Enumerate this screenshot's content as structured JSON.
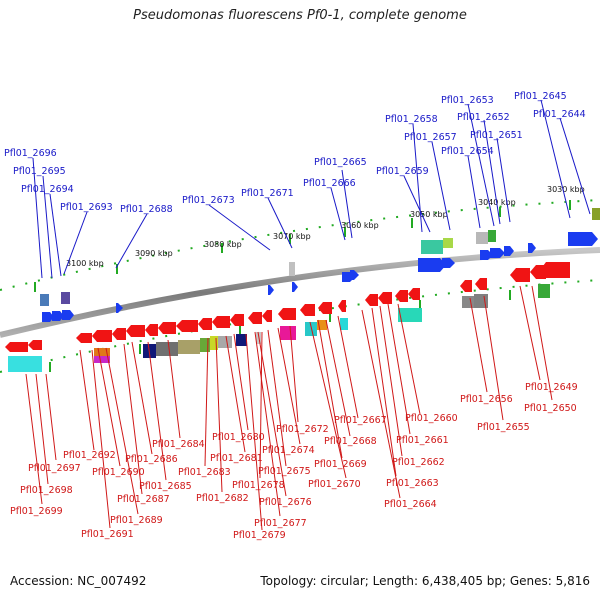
{
  "title": "Pseudomonas fluorescens Pf0-1, complete genome",
  "footer": {
    "accession": "Accession: NC_007492",
    "info": "Topology: circular; Length: 6,438,405 bp; Genes: 5,816"
  },
  "colors": {
    "forward_gene": "#1a3cf0",
    "reverse_gene": "#f01414",
    "top_label": "#1a1ac8",
    "bottom_label": "#d01818",
    "backbone": "#8a8a8a",
    "tick": "#22aa22"
  },
  "kbp_labels": [
    "3100 kbp",
    "3090 kbp",
    "3080 kbp",
    "3070 kbp",
    "3060 kbp",
    "3050 kbp",
    "3040 kbp",
    "3030 kbp"
  ],
  "top_labels": [
    "Pfl01_2696",
    "Pfl01_2695",
    "Pfl01_2694",
    "Pfl01_2693",
    "Pfl01_2688",
    "Pfl01_2673",
    "Pfl01_2671",
    "Pfl01_2666",
    "Pfl01_2665",
    "Pfl01_2659",
    "Pfl01_2658",
    "Pfl01_2657",
    "Pfl01_2654",
    "Pfl01_2653",
    "Pfl01_2652",
    "Pfl01_2651",
    "Pfl01_2645",
    "Pfl01_2644"
  ],
  "bottom_labels": [
    "Pfl01_2649",
    "Pfl01_2650",
    "Pfl01_2656",
    "Pfl01_2655",
    "Pfl01_2660",
    "Pfl01_2661",
    "Pfl01_2667",
    "Pfl01_2668",
    "Pfl01_2662",
    "Pfl01_2663",
    "Pfl01_2664",
    "Pfl01_2669",
    "Pfl01_2672",
    "Pfl01_2670",
    "Pfl01_2674",
    "Pfl01_2675",
    "Pfl01_2680",
    "Pfl01_2681",
    "Pfl01_2678",
    "Pfl01_2676",
    "Pfl01_2677",
    "Pfl01_2679",
    "Pfl01_2684",
    "Pfl01_2683",
    "Pfl01_2682",
    "Pfl01_2686",
    "Pfl01_2685",
    "Pfl01_2687",
    "Pfl01_2689",
    "Pfl01_2691",
    "Pfl01_2692",
    "Pfl01_2690",
    "Pfl01_2697",
    "Pfl01_2698",
    "Pfl01_2699"
  ]
}
